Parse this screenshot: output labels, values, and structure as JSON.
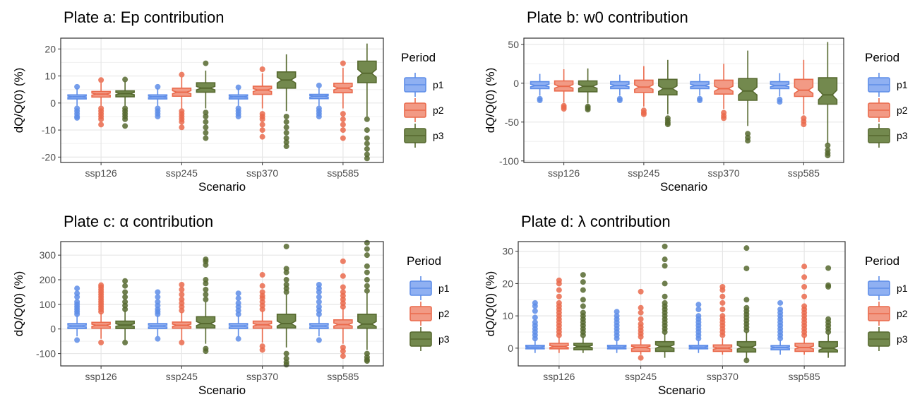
{
  "legend": {
    "title": "Period",
    "entries": [
      {
        "label": "p1",
        "fill": "#8fb0f2",
        "stroke": "#5e8de8"
      },
      {
        "label": "p2",
        "fill": "#f29a85",
        "stroke": "#ea6a4c"
      },
      {
        "label": "p3",
        "fill": "#73894e",
        "stroke": "#56692f"
      }
    ]
  },
  "chart_data": [
    {
      "type": "box",
      "title": "Plate a: Ep contribution",
      "xlabel": "Scenario",
      "ylabel": "dQ/Q(0) (%)",
      "categories": [
        "ssp126",
        "ssp245",
        "ssp370",
        "ssp585"
      ],
      "ylim": [
        -22,
        24
      ],
      "yticks": [
        -20,
        -10,
        0,
        10,
        20
      ],
      "series": [
        {
          "name": "p1",
          "boxes": [
            {
              "min": -1,
              "q1": 1.5,
              "median": 2.3,
              "q3": 3,
              "max": 5.5,
              "outliers": [
                -2,
                -3,
                -4,
                -5,
                -5.5,
                6
              ]
            },
            {
              "min": -1,
              "q1": 1.5,
              "median": 2.3,
              "q3": 3,
              "max": 5.5,
              "outliers": [
                -2,
                -3,
                -4,
                -5,
                6
              ]
            },
            {
              "min": -1,
              "q1": 1.5,
              "median": 2.3,
              "q3": 3,
              "max": 5.5,
              "outliers": [
                -2,
                -3,
                -4,
                -5,
                5.8
              ]
            },
            {
              "min": -1,
              "q1": 1.6,
              "median": 2.5,
              "q3": 3.2,
              "max": 5.7,
              "outliers": [
                -2,
                -3,
                -4,
                -5,
                6.5
              ]
            }
          ]
        },
        {
          "name": "p2",
          "boxes": [
            {
              "min": -1,
              "q1": 2.2,
              "median": 3.3,
              "q3": 4.3,
              "max": 7.5,
              "outliers": [
                -2,
                -3,
                -4,
                -5,
                -6,
                -8,
                8.5
              ]
            },
            {
              "min": -2,
              "q1": 2.5,
              "median": 4,
              "q3": 5.5,
              "max": 9.5,
              "outliers": [
                -3,
                -4,
                -5,
                -6,
                -7,
                -9,
                10.5
              ]
            },
            {
              "min": -2,
              "q1": 3.2,
              "median": 4.8,
              "q3": 6.2,
              "max": 11,
              "outliers": [
                -4,
                -5,
                -6,
                -8,
                -10,
                -12.5,
                12.5
              ]
            },
            {
              "min": -2,
              "q1": 3.8,
              "median": 5.5,
              "q3": 7.3,
              "max": 13,
              "outliers": [
                -4,
                -6,
                -8,
                -10,
                -13,
                14.7
              ]
            }
          ]
        },
        {
          "name": "p3",
          "boxes": [
            {
              "min": -1,
              "q1": 2.3,
              "median": 3.5,
              "q3": 4.5,
              "max": 8,
              "outliers": [
                -2,
                -3,
                -4,
                -5,
                -6,
                -8.5,
                8.7
              ]
            },
            {
              "min": -2,
              "q1": 4,
              "median": 5.5,
              "q3": 7.5,
              "max": 12,
              "outliers": [
                -3.5,
                -5,
                -7,
                -9,
                -11,
                -13,
                14.7
              ]
            },
            {
              "min": -3,
              "q1": 5.5,
              "median": 8.5,
              "q3": 11.5,
              "max": 18,
              "outliers": [
                -5,
                -7,
                -9,
                -11,
                -13,
                -14.5,
                -16
              ]
            },
            {
              "min": -5,
              "q1": 7.5,
              "median": 11,
              "q3": 15.5,
              "max": 22,
              "outliers": [
                -6,
                -10,
                -13,
                -15,
                -17,
                -19,
                -20.5
              ]
            }
          ]
        }
      ]
    },
    {
      "type": "box",
      "title": "Plate b: w0 contribution",
      "xlabel": "Scenario",
      "ylabel": "dQ/Q(0) (%)",
      "categories": [
        "ssp126",
        "ssp245",
        "ssp370",
        "ssp585"
      ],
      "ylim": [
        -102,
        58
      ],
      "yticks": [
        -100,
        -50,
        0,
        50
      ],
      "series": [
        {
          "name": "p1",
          "boxes": [
            {
              "min": -16,
              "q1": -7,
              "median": -3,
              "q3": 2,
              "max": 12,
              "outliers": [
                -20,
                -22
              ]
            },
            {
              "min": -16,
              "q1": -7,
              "median": -3,
              "q3": 2,
              "max": 11,
              "outliers": [
                -20,
                -22
              ]
            },
            {
              "min": -16,
              "q1": -7,
              "median": -3,
              "q3": 2,
              "max": 12,
              "outliers": [
                -20,
                -22
              ]
            },
            {
              "min": -17,
              "q1": -7,
              "median": -3,
              "q3": 2,
              "max": 13,
              "outliers": [
                -21,
                -24
              ]
            }
          ]
        },
        {
          "name": "p2",
          "boxes": [
            {
              "min": -25,
              "q1": -10,
              "median": -4,
              "q3": 3,
              "max": 18,
              "outliers": [
                -29,
                -31,
                -33
              ]
            },
            {
              "min": -30,
              "q1": -12,
              "median": -5,
              "q3": 4,
              "max": 22,
              "outliers": [
                -35,
                -38,
                -40
              ]
            },
            {
              "min": -33,
              "q1": -14,
              "median": -7,
              "q3": 4,
              "max": 25,
              "outliers": [
                -38,
                -42,
                -45
              ]
            },
            {
              "min": -40,
              "q1": -17,
              "median": -9,
              "q3": 5,
              "max": 30,
              "outliers": [
                -45,
                -49,
                -53
              ]
            }
          ]
        },
        {
          "name": "p3",
          "boxes": [
            {
              "min": -26,
              "q1": -11,
              "median": -4,
              "q3": 3,
              "max": 19,
              "outliers": [
                -30,
                -32,
                -34
              ]
            },
            {
              "min": -40,
              "q1": -15,
              "median": -7,
              "q3": 5,
              "max": 30,
              "outliers": [
                -45,
                -48,
                -51,
                -53
              ]
            },
            {
              "min": -55,
              "q1": -22,
              "median": -10,
              "q3": 6,
              "max": 42,
              "outliers": [
                -65,
                -70,
                -74
              ]
            },
            {
              "min": -78,
              "q1": -27,
              "median": -15,
              "q3": 7,
              "max": 53,
              "outliers": [
                -80,
                -86,
                -90,
                -93
              ]
            }
          ]
        }
      ]
    },
    {
      "type": "box",
      "title": "Plate c: α contribution",
      "xlabel": "Scenario",
      "ylabel": "dQ/Q(0) (%)",
      "categories": [
        "ssp126",
        "ssp245",
        "ssp370",
        "ssp585"
      ],
      "ylim": [
        -150,
        355
      ],
      "yticks": [
        -100,
        0,
        100,
        200,
        300
      ],
      "series": [
        {
          "name": "p1",
          "boxes": [
            {
              "min": -30,
              "q1": 2,
              "median": 12,
              "q3": 22,
              "max": 55,
              "outliers": [
                -45,
                60,
                70,
                80,
                90,
                100,
                110,
                130,
                145,
                165
              ]
            },
            {
              "min": -30,
              "q1": 2,
              "median": 12,
              "q3": 22,
              "max": 55,
              "outliers": [
                -40,
                60,
                70,
                80,
                95,
                110,
                130,
                150
              ]
            },
            {
              "min": -30,
              "q1": 2,
              "median": 12,
              "q3": 22,
              "max": 55,
              "outliers": [
                -40,
                60,
                75,
                90,
                105,
                125,
                145
              ]
            },
            {
              "min": -30,
              "q1": 2,
              "median": 12,
              "q3": 22,
              "max": 55,
              "outliers": [
                -45,
                60,
                75,
                90,
                110,
                130,
                150,
                165,
                180
              ]
            }
          ]
        },
        {
          "name": "p2",
          "boxes": [
            {
              "min": -40,
              "q1": 3,
              "median": 15,
              "q3": 27,
              "max": 65,
              "outliers": [
                -55,
                70,
                80,
                90,
                100,
                110,
                120,
                130,
                140,
                150,
                160,
                170,
                178
              ]
            },
            {
              "min": -45,
              "q1": 3,
              "median": 15,
              "q3": 28,
              "max": 68,
              "outliers": [
                -55,
                75,
                90,
                105,
                120,
                140,
                160,
                180
              ]
            },
            {
              "min": -55,
              "q1": 3,
              "median": 17,
              "q3": 32,
              "max": 75,
              "outliers": [
                -70,
                -85,
                80,
                95,
                110,
                125,
                135,
                150,
                175,
                220
              ]
            },
            {
              "min": -60,
              "q1": 3,
              "median": 18,
              "q3": 37,
              "max": 85,
              "outliers": [
                -75,
                -90,
                -110,
                90,
                105,
                120,
                135,
                150,
                170,
                215,
                275
              ]
            }
          ]
        },
        {
          "name": "p3",
          "boxes": [
            {
              "min": -45,
              "q1": 2,
              "median": 16,
              "q3": 32,
              "max": 75,
              "outliers": [
                -55,
                80,
                95,
                110,
                130,
                150,
                175,
                195
              ]
            },
            {
              "min": -60,
              "q1": 4,
              "median": 22,
              "q3": 50,
              "max": 110,
              "outliers": [
                -80,
                -90,
                120,
                140,
                160,
                185,
                200,
                260,
                275,
                283
              ]
            },
            {
              "min": -75,
              "q1": 4,
              "median": 22,
              "q3": 60,
              "max": 140,
              "outliers": [
                -100,
                -120,
                -135,
                -145,
                150,
                165,
                180,
                200,
                230,
                245,
                335
              ]
            },
            {
              "min": -85,
              "q1": 3,
              "median": 20,
              "q3": 60,
              "max": 145,
              "outliers": [
                -100,
                -115,
                -125,
                -130,
                155,
                175,
                200,
                230,
                255,
                300,
                325,
                350
              ]
            }
          ]
        }
      ]
    },
    {
      "type": "box",
      "title": "Plate d: λ contribution",
      "xlabel": "Scenario",
      "ylabel": "dQ/Q(0) (%)",
      "categories": [
        "ssp126",
        "ssp245",
        "ssp370",
        "ssp585"
      ],
      "ylim": [
        -5.5,
        33
      ],
      "yticks": [
        0,
        10,
        20,
        30
      ],
      "series": [
        {
          "name": "p1",
          "boxes": [
            {
              "min": -1.5,
              "q1": -0.2,
              "median": 0.3,
              "q3": 0.9,
              "max": 2.5,
              "outliers": [
                3,
                4,
                5,
                6,
                7,
                8,
                9.5,
                11.5,
                13,
                14
              ]
            },
            {
              "min": -1.5,
              "q1": -0.2,
              "median": 0.3,
              "q3": 0.9,
              "max": 2.5,
              "outliers": [
                3,
                4,
                5,
                6,
                7,
                8,
                9,
                10,
                11.3
              ]
            },
            {
              "min": -1.5,
              "q1": -0.2,
              "median": 0.3,
              "q3": 0.9,
              "max": 2.5,
              "outliers": [
                3,
                4,
                5,
                6,
                7,
                8,
                9,
                10,
                12,
                13.5
              ]
            },
            {
              "min": -2,
              "q1": -0.5,
              "median": 0.2,
              "q3": 0.8,
              "max": 2.5,
              "outliers": [
                3,
                4,
                5,
                6,
                7,
                8,
                9,
                10,
                11,
                12,
                14
              ]
            }
          ]
        },
        {
          "name": "p2",
          "boxes": [
            {
              "min": -1.5,
              "q1": -0.2,
              "median": 0.5,
              "q3": 1.5,
              "max": 3.5,
              "outliers": [
                4,
                5,
                6,
                7,
                8,
                9,
                10,
                11,
                12,
                13,
                14,
                16,
                18,
                20,
                21
              ]
            },
            {
              "min": -2,
              "q1": -1,
              "median": 0.2,
              "q3": 1,
              "max": 3,
              "outliers": [
                -3,
                3.5,
                4.5,
                5.5,
                6.5,
                7.5,
                9,
                11,
                12.5,
                17.5
              ]
            },
            {
              "min": -2,
              "q1": -1,
              "median": 0,
              "q3": 1,
              "max": 3,
              "outliers": [
                4,
                5,
                6,
                7,
                8,
                9,
                10,
                12,
                14,
                16,
                18,
                19
              ]
            },
            {
              "min": -2,
              "q1": -1,
              "median": 0.2,
              "q3": 1.5,
              "max": 3.5,
              "outliers": [
                4,
                5,
                6,
                7,
                8,
                9,
                10,
                11,
                12,
                13,
                16,
                19,
                22,
                25.3
              ]
            }
          ]
        },
        {
          "name": "p3",
          "boxes": [
            {
              "min": -1.5,
              "q1": -0.5,
              "median": 0.5,
              "q3": 1.5,
              "max": 3.5,
              "outliers": [
                4,
                5,
                6,
                7,
                8,
                9,
                10,
                11,
                13,
                15,
                18,
                20.5,
                22.7
              ]
            },
            {
              "min": -3,
              "q1": -1,
              "median": 0.5,
              "q3": 2,
              "max": 4.5,
              "outliers": [
                5,
                6,
                7,
                8,
                9,
                10,
                11,
                12,
                13,
                14,
                16,
                20,
                25.5,
                27.5,
                31.5
              ]
            },
            {
              "min": -3.5,
              "q1": -1.2,
              "median": 0.3,
              "q3": 2,
              "max": 5,
              "outliers": [
                -3.8,
                5.5,
                6.5,
                7.5,
                8.5,
                9.5,
                10.5,
                11.5,
                12.5,
                15,
                24.7,
                31
              ]
            },
            {
              "min": -3,
              "q1": -1.2,
              "median": 0,
              "q3": 2,
              "max": 4.5,
              "outliers": [
                5,
                6,
                7,
                8,
                9,
                19,
                19.5,
                24.8
              ]
            }
          ]
        }
      ]
    }
  ]
}
